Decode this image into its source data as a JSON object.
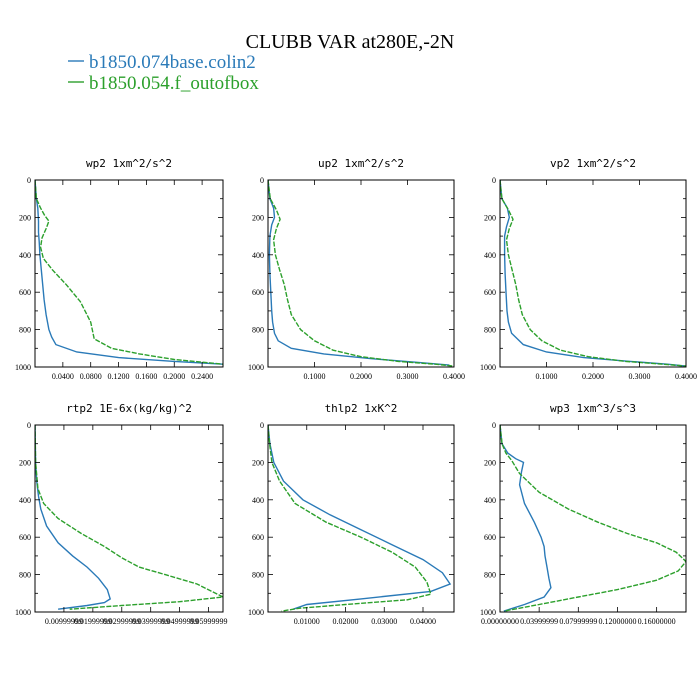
{
  "figure": {
    "title": "CLUBB VAR at280E,-2N",
    "colors": {
      "series1": "#2a7ab8",
      "series2": "#2ca02c"
    },
    "legend": [
      {
        "label": "b1850.074base.colin2"
      },
      {
        "label": "b1850.054.f_outofbox"
      }
    ]
  },
  "chart_data": [
    {
      "type": "line",
      "title": "wp2   1xm^2/s^2",
      "xlim": [
        0,
        0.27
      ],
      "ylim": [
        0,
        1000
      ],
      "y_inverted": true,
      "xticks": [
        0.04,
        0.08,
        0.12,
        0.16,
        0.2,
        0.24
      ],
      "xtick_labels": [
        "0.0400",
        "0.0800",
        "0.1200",
        "0.1600",
        "0.2000",
        "0.2400"
      ],
      "yticks": [
        0,
        200,
        400,
        600,
        800,
        1000
      ],
      "ytick_labels": [
        "0",
        "200",
        "400",
        "600",
        "800",
        "1000"
      ],
      "series": [
        {
          "x": [
            0,
            0.002,
            0.004,
            0.005,
            0.005,
            0.006,
            0.007,
            0.009,
            0.011,
            0.013,
            0.016,
            0.02,
            0.024,
            0.03,
            0.06,
            0.12,
            0.2,
            0.27
          ],
          "y": [
            0,
            100,
            150,
            220,
            280,
            330,
            400,
            480,
            560,
            640,
            720,
            800,
            840,
            880,
            920,
            950,
            970,
            985
          ]
        },
        {
          "x": [
            0,
            0.002,
            0.008,
            0.014,
            0.02,
            0.016,
            0.01,
            0.008,
            0.012,
            0.025,
            0.045,
            0.065,
            0.08,
            0.085,
            0.11,
            0.15,
            0.2,
            0.27
          ],
          "y": [
            0,
            100,
            150,
            190,
            220,
            260,
            310,
            360,
            420,
            480,
            560,
            650,
            760,
            850,
            900,
            930,
            960,
            985
          ]
        }
      ]
    },
    {
      "type": "line",
      "title": "up2   1xm^2/s^2",
      "xlim": [
        0,
        0.4
      ],
      "ylim": [
        0,
        1000
      ],
      "y_inverted": true,
      "xticks": [
        0.1,
        0.2,
        0.3,
        0.4
      ],
      "xtick_labels": [
        "0.1000",
        "0.2000",
        "0.3000",
        "0.4000"
      ],
      "yticks": [
        0,
        200,
        400,
        600,
        800,
        1000
      ],
      "ytick_labels": [
        "0",
        "200",
        "400",
        "600",
        "800",
        "1000"
      ],
      "series": [
        {
          "x": [
            0,
            0.004,
            0.012,
            0.014,
            0.008,
            0.004,
            0.003,
            0.004,
            0.006,
            0.008,
            0.01,
            0.014,
            0.022,
            0.05,
            0.12,
            0.22,
            0.32,
            0.39
          ],
          "y": [
            0,
            100,
            150,
            200,
            240,
            300,
            400,
            500,
            600,
            700,
            760,
            820,
            860,
            900,
            930,
            955,
            975,
            990
          ]
        },
        {
          "x": [
            0,
            0.005,
            0.018,
            0.026,
            0.018,
            0.012,
            0.016,
            0.025,
            0.035,
            0.042,
            0.05,
            0.07,
            0.1,
            0.14,
            0.2,
            0.28,
            0.36,
            0.4
          ],
          "y": [
            0,
            100,
            160,
            210,
            260,
            320,
            400,
            480,
            560,
            640,
            720,
            800,
            860,
            910,
            945,
            970,
            985,
            995
          ]
        }
      ]
    },
    {
      "type": "line",
      "title": "vp2   1xm^2/s^2",
      "xlim": [
        0,
        0.4
      ],
      "ylim": [
        0,
        1000
      ],
      "y_inverted": true,
      "xticks": [
        0.1,
        0.2,
        0.3,
        0.4
      ],
      "xtick_labels": [
        "0.1000",
        "0.2000",
        "0.3000",
        "0.4000"
      ],
      "yticks": [
        0,
        200,
        400,
        600,
        800,
        1000
      ],
      "ytick_labels": [
        "0",
        "200",
        "400",
        "600",
        "800",
        "1000"
      ],
      "series": [
        {
          "x": [
            0,
            0.004,
            0.016,
            0.02,
            0.014,
            0.01,
            0.01,
            0.011,
            0.013,
            0.015,
            0.018,
            0.025,
            0.05,
            0.1,
            0.18,
            0.28,
            0.36,
            0.4
          ],
          "y": [
            0,
            100,
            150,
            200,
            250,
            300,
            400,
            500,
            600,
            700,
            760,
            820,
            880,
            920,
            950,
            970,
            985,
            995
          ]
        },
        {
          "x": [
            0,
            0.004,
            0.018,
            0.028,
            0.02,
            0.014,
            0.018,
            0.026,
            0.034,
            0.04,
            0.048,
            0.065,
            0.09,
            0.13,
            0.19,
            0.27,
            0.35,
            0.4
          ],
          "y": [
            0,
            100,
            160,
            210,
            260,
            320,
            400,
            480,
            560,
            640,
            720,
            800,
            860,
            910,
            945,
            970,
            985,
            995
          ]
        }
      ]
    },
    {
      "type": "line",
      "title": "rtp2   1E-6x(kg/kg)^2",
      "xlim": [
        0,
        0.065
      ],
      "ylim": [
        0,
        1000
      ],
      "y_inverted": true,
      "xticks": [
        0.01,
        0.02,
        0.03,
        0.04,
        0.05,
        0.06
      ],
      "xtick_labels": [
        "0.00999999",
        "0.01999999",
        "0.02999999",
        "0.03999999",
        "0.04999999",
        "0.05999999"
      ],
      "yticks": [
        0,
        200,
        400,
        600,
        800,
        1000
      ],
      "ytick_labels": [
        "0",
        "200",
        "400",
        "600",
        "800",
        "1000"
      ],
      "series": [
        {
          "x": [
            0,
            0.0002,
            0.0006,
            0.0012,
            0.002,
            0.004,
            0.008,
            0.013,
            0.018,
            0.022,
            0.025,
            0.026,
            0.024,
            0.018,
            0.008
          ],
          "y": [
            0,
            200,
            300,
            380,
            450,
            540,
            630,
            700,
            760,
            820,
            880,
            930,
            950,
            965,
            985
          ]
        },
        {
          "x": [
            0,
            0.0002,
            0.001,
            0.003,
            0.008,
            0.016,
            0.024,
            0.03,
            0.036,
            0.045,
            0.056,
            0.065,
            0.05,
            0.03,
            0.012
          ],
          "y": [
            0,
            200,
            340,
            420,
            500,
            580,
            650,
            710,
            760,
            800,
            850,
            920,
            945,
            965,
            985
          ]
        }
      ]
    },
    {
      "type": "line",
      "title": "thlp2   1xK^2",
      "xlim": [
        0,
        0.048
      ],
      "ylim": [
        0,
        1000
      ],
      "y_inverted": true,
      "xticks": [
        0.01,
        0.02,
        0.03,
        0.04
      ],
      "xtick_labels": [
        "0.01000",
        "0.02000",
        "0.03000",
        "0.04000"
      ],
      "yticks": [
        0,
        200,
        400,
        600,
        800,
        1000
      ],
      "ytick_labels": [
        "0",
        "200",
        "400",
        "600",
        "800",
        "1000"
      ],
      "series": [
        {
          "x": [
            0,
            0.0005,
            0.0015,
            0.004,
            0.009,
            0.016,
            0.024,
            0.032,
            0.04,
            0.045,
            0.047,
            0.042,
            0.024,
            0.01,
            0.0065
          ],
          "y": [
            0,
            100,
            200,
            300,
            400,
            480,
            560,
            640,
            720,
            790,
            850,
            890,
            930,
            960,
            985
          ]
        },
        {
          "x": [
            0,
            0.0004,
            0.001,
            0.003,
            0.007,
            0.015,
            0.024,
            0.032,
            0.038,
            0.041,
            0.042,
            0.036,
            0.02,
            0.008,
            0.0035
          ],
          "y": [
            0,
            100,
            200,
            300,
            420,
            520,
            600,
            680,
            760,
            840,
            905,
            935,
            960,
            980,
            995
          ]
        }
      ]
    },
    {
      "type": "line",
      "title": "wp3   1xm^3/s^3",
      "xlim": [
        0,
        0.19
      ],
      "ylim": [
        0,
        1000
      ],
      "y_inverted": true,
      "xticks": [
        0,
        0.04,
        0.08,
        0.12,
        0.16
      ],
      "xtick_labels": [
        "0.00000000",
        "0.03999999",
        "0.07999999",
        "0.12000000",
        "0.16000000"
      ],
      "yticks": [
        0,
        200,
        400,
        600,
        800,
        1000
      ],
      "ytick_labels": [
        "0",
        "200",
        "400",
        "600",
        "800",
        "1000"
      ],
      "series": [
        {
          "x": [
            0,
            0.002,
            0.008,
            0.016,
            0.024,
            0.022,
            0.02,
            0.025,
            0.035,
            0.042,
            0.045,
            0.046,
            0.048,
            0.05,
            0.052,
            0.045,
            0.025,
            0.004
          ],
          "y": [
            0,
            100,
            150,
            180,
            200,
            250,
            320,
            420,
            520,
            600,
            650,
            700,
            760,
            820,
            870,
            920,
            960,
            995
          ]
        },
        {
          "x": [
            0,
            0.002,
            0.006,
            0.012,
            0.02,
            0.04,
            0.07,
            0.1,
            0.13,
            0.16,
            0.18,
            0.19,
            0.182,
            0.16,
            0.12,
            0.08,
            0.04,
            0.004
          ],
          "y": [
            0,
            100,
            150,
            190,
            260,
            360,
            450,
            520,
            580,
            630,
            680,
            730,
            780,
            830,
            880,
            920,
            960,
            995
          ]
        }
      ]
    }
  ]
}
